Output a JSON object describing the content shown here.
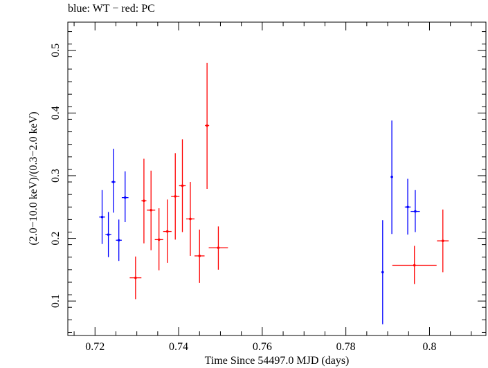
{
  "chart_data": {
    "type": "scatter",
    "title": "blue: WT − red: PC",
    "xlabel": "Time Since 54497.0 MJD (days)",
    "ylabel": "(2.0−10.0 keV)/(0.3−2.0 keV)",
    "xlim": [
      0.7135,
      0.8135
    ],
    "ylim": [
      0.045,
      0.545
    ],
    "xticks": [
      0.72,
      0.74,
      0.76,
      0.78,
      0.8
    ],
    "xtick_labels": [
      "0.72",
      "0.74",
      "0.76",
      "0.78",
      "0.8"
    ],
    "yticks": [
      0.1,
      0.2,
      0.3,
      0.4,
      0.5
    ],
    "ytick_labels": [
      "0.1",
      "0.2",
      "0.3",
      "0.4",
      "0.5"
    ],
    "grid": false,
    "series": [
      {
        "color": "#0000ff",
        "points": [
          {
            "x": 0.7217,
            "xerr": 0.0007,
            "y": 0.234,
            "ylo": 0.191,
            "yhi": 0.277
          },
          {
            "x": 0.7232,
            "xerr": 0.0007,
            "y": 0.206,
            "ylo": 0.17,
            "yhi": 0.242
          },
          {
            "x": 0.7244,
            "xerr": 0.0005,
            "y": 0.29,
            "ylo": 0.241,
            "yhi": 0.343
          },
          {
            "x": 0.7257,
            "xerr": 0.0007,
            "y": 0.197,
            "ylo": 0.164,
            "yhi": 0.23
          },
          {
            "x": 0.7272,
            "xerr": 0.0008,
            "y": 0.265,
            "ylo": 0.226,
            "yhi": 0.307
          },
          {
            "x": 0.7888,
            "xerr": 0.0001,
            "y": 0.146,
            "ylo": 0.063,
            "yhi": 0.229
          },
          {
            "x": 0.791,
            "xerr": 0.0001,
            "y": 0.298,
            "ylo": 0.207,
            "yhi": 0.388
          },
          {
            "x": 0.7948,
            "xerr": 0.0007,
            "y": 0.25,
            "ylo": 0.206,
            "yhi": 0.295
          },
          {
            "x": 0.7966,
            "xerr": 0.0011,
            "y": 0.243,
            "ylo": 0.21,
            "yhi": 0.277
          }
        ]
      },
      {
        "color": "#ff0000",
        "points": [
          {
            "x": 0.7297,
            "xerr": 0.0014,
            "y": 0.137,
            "ylo": 0.103,
            "yhi": 0.171
          },
          {
            "x": 0.7317,
            "xerr": 0.0006,
            "y": 0.26,
            "ylo": 0.192,
            "yhi": 0.327
          },
          {
            "x": 0.7334,
            "xerr": 0.001,
            "y": 0.245,
            "ylo": 0.181,
            "yhi": 0.308
          },
          {
            "x": 0.7353,
            "xerr": 0.001,
            "y": 0.198,
            "ylo": 0.149,
            "yhi": 0.248
          },
          {
            "x": 0.7373,
            "xerr": 0.001,
            "y": 0.211,
            "ylo": 0.161,
            "yhi": 0.262
          },
          {
            "x": 0.7392,
            "xerr": 0.001,
            "y": 0.267,
            "ylo": 0.198,
            "yhi": 0.336
          },
          {
            "x": 0.7409,
            "xerr": 0.0008,
            "y": 0.284,
            "ylo": 0.21,
            "yhi": 0.358
          },
          {
            "x": 0.7428,
            "xerr": 0.001,
            "y": 0.231,
            "ylo": 0.172,
            "yhi": 0.29
          },
          {
            "x": 0.745,
            "xerr": 0.0012,
            "y": 0.172,
            "ylo": 0.129,
            "yhi": 0.214
          },
          {
            "x": 0.7468,
            "xerr": 0.0005,
            "y": 0.38,
            "ylo": 0.279,
            "yhi": 0.48
          },
          {
            "x": 0.7495,
            "xerr": 0.0023,
            "y": 0.185,
            "ylo": 0.15,
            "yhi": 0.219
          },
          {
            "x": 0.7964,
            "xerr": 0.0053,
            "y": 0.157,
            "ylo": 0.127,
            "yhi": 0.188
          },
          {
            "x": 0.8032,
            "xerr": 0.0014,
            "y": 0.196,
            "ylo": 0.146,
            "yhi": 0.246
          }
        ]
      }
    ]
  }
}
